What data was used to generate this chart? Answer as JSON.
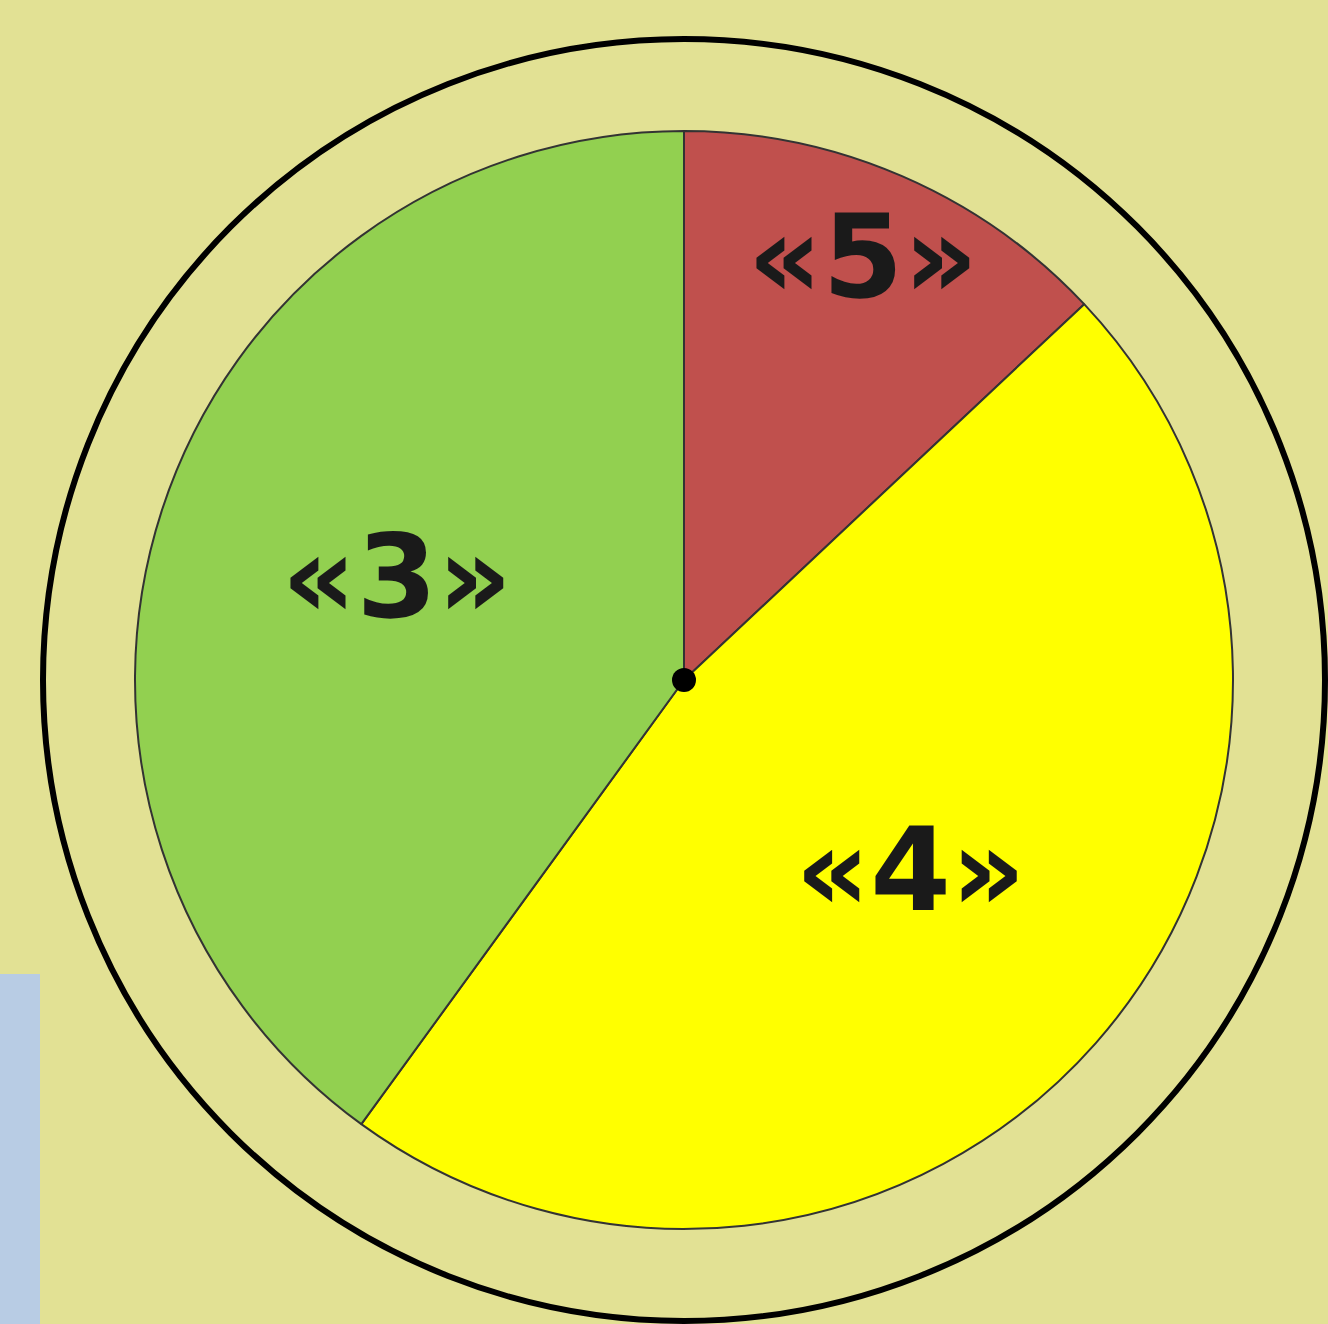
{
  "chart_data": {
    "type": "pie",
    "categories": [
      "«5»",
      "«4»",
      "«3»"
    ],
    "values": [
      13,
      47,
      40
    ],
    "colors": [
      "#c0504d",
      "#ffff00",
      "#92d050"
    ],
    "legend": false
  }
}
